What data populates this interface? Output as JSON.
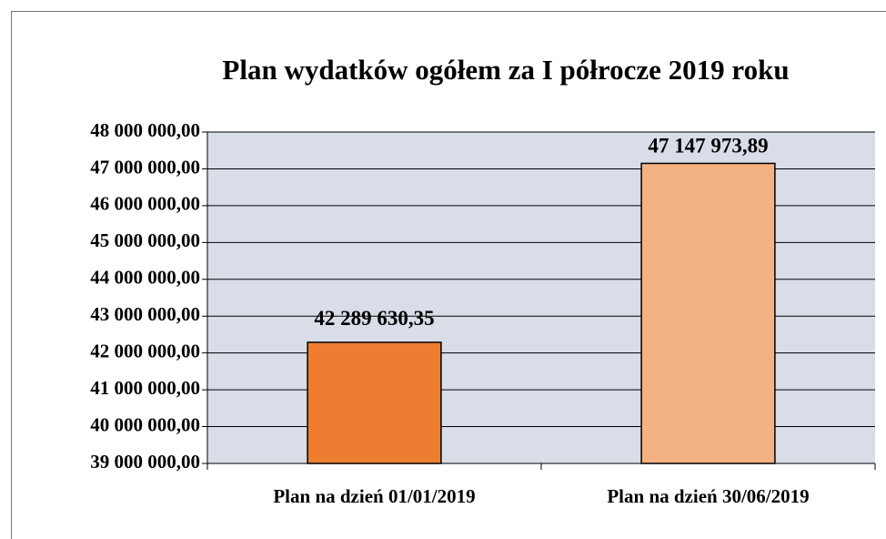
{
  "chart_data": {
    "type": "bar",
    "title": "Plan wydatków ogółem za I półrocze 2019 roku",
    "categories": [
      "Plan na dzień 01/01/2019",
      "Plan na dzień 30/06/2019"
    ],
    "values": [
      42289630.35,
      47147973.89
    ],
    "value_labels": [
      "42 289 630,35",
      "47 147 973,89"
    ],
    "colors": [
      "#ed7d31",
      "#f4b183"
    ],
    "ylim": [
      39000000,
      48000000
    ],
    "yticks": [
      {
        "value": 39000000,
        "label": "39 000 000,00"
      },
      {
        "value": 40000000,
        "label": "40 000 000,00"
      },
      {
        "value": 41000000,
        "label": "41 000 000,00"
      },
      {
        "value": 42000000,
        "label": "42 000 000,00"
      },
      {
        "value": 43000000,
        "label": "43 000 000,00"
      },
      {
        "value": 44000000,
        "label": "44 000 000,00"
      },
      {
        "value": 45000000,
        "label": "45 000 000,00"
      },
      {
        "value": 46000000,
        "label": "46 000 000,00"
      },
      {
        "value": 47000000,
        "label": "47 000 000,00"
      },
      {
        "value": 48000000,
        "label": "48 000 000,00"
      }
    ],
    "grid": true
  }
}
